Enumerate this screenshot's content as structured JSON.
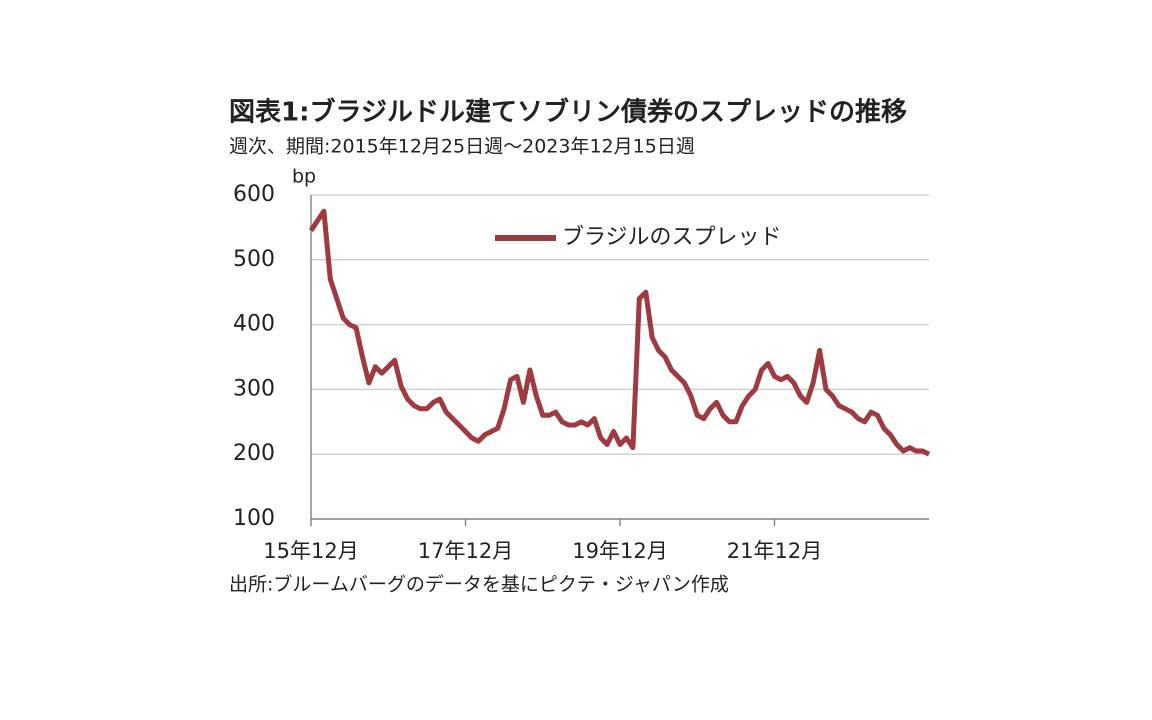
{
  "chart_data": {
    "type": "line",
    "title": "図表1:ブラジルドル建てソブリン債券のスプレッドの推移",
    "subtitle": "週次、期間:2015年12月25日週～2023年12月15日週",
    "y_label": "bp",
    "source": "出所:ブルームバーグのデータを基にピクテ・ジャパン作成",
    "categories": [
      "15年12月",
      null,
      null,
      null,
      null,
      null,
      null,
      null,
      null,
      null,
      null,
      null,
      null,
      null,
      null,
      null,
      null,
      null,
      null,
      null,
      null,
      null,
      null,
      null,
      "17年12月",
      null,
      null,
      null,
      null,
      null,
      null,
      null,
      null,
      null,
      null,
      null,
      null,
      null,
      null,
      null,
      null,
      null,
      null,
      null,
      null,
      null,
      null,
      null,
      "19年12月",
      null,
      null,
      null,
      null,
      null,
      null,
      null,
      null,
      null,
      null,
      null,
      null,
      null,
      null,
      null,
      null,
      null,
      null,
      null,
      null,
      null,
      null,
      null,
      "21年12月",
      null,
      null,
      null,
      null,
      null,
      null,
      null,
      null,
      null,
      null,
      null,
      null,
      null,
      null,
      null,
      null,
      null,
      null,
      null,
      null,
      null,
      null,
      null,
      null
    ],
    "series": [
      {
        "name": "ブラジルのスプレッド",
        "color": "#9e3a40",
        "values": [
          545,
          560,
          575,
          470,
          440,
          410,
          400,
          395,
          350,
          310,
          335,
          325,
          335,
          345,
          305,
          285,
          275,
          270,
          270,
          280,
          285,
          265,
          255,
          245,
          235,
          225,
          220,
          230,
          235,
          240,
          270,
          315,
          320,
          280,
          330,
          290,
          260,
          260,
          265,
          250,
          245,
          245,
          250,
          245,
          255,
          225,
          215,
          235,
          215,
          225,
          210,
          440,
          450,
          380,
          360,
          350,
          330,
          320,
          310,
          290,
          260,
          255,
          270,
          280,
          260,
          250,
          250,
          275,
          290,
          300,
          330,
          340,
          320,
          315,
          320,
          310,
          290,
          280,
          310,
          360,
          300,
          290,
          275,
          270,
          265,
          255,
          250,
          265,
          260,
          240,
          230,
          215,
          205,
          210,
          205,
          205,
          200
        ]
      }
    ],
    "ylim": [
      100,
      600
    ],
    "yticks": [
      100,
      200,
      300,
      400,
      500,
      600
    ],
    "grid": true
  }
}
